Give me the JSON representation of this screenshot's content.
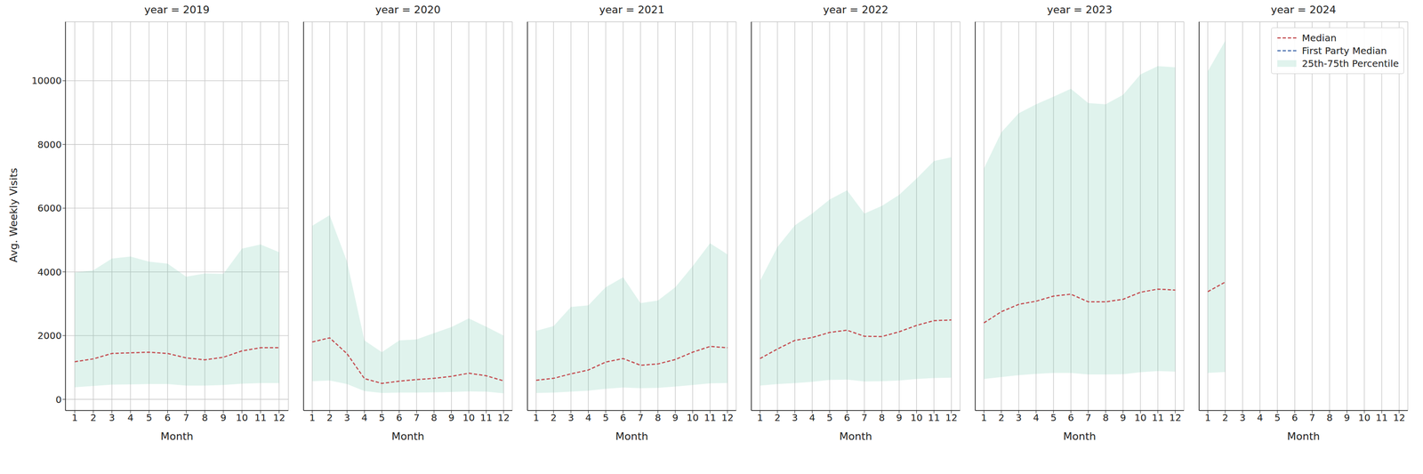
{
  "chart_data": [
    {
      "type": "line",
      "title": "year = 2019",
      "x_label": "Month",
      "y_label": "Avg. Weekly Visits",
      "x": [
        1,
        2,
        3,
        4,
        5,
        6,
        7,
        8,
        9,
        10,
        11,
        12
      ],
      "xlim": [
        0.5,
        12.5
      ],
      "xticks": [
        1,
        2,
        3,
        4,
        5,
        6,
        7,
        8,
        9,
        10,
        11,
        12
      ],
      "ylim": [
        -350,
        11850
      ],
      "yticks": [
        0,
        2000,
        4000,
        6000,
        8000,
        10000
      ],
      "grid": true,
      "series": [
        {
          "name": "Median",
          "color": "#c44e52",
          "line_style": "dashed",
          "values": [
            1180,
            1270,
            1440,
            1460,
            1480,
            1440,
            1300,
            1240,
            1320,
            1520,
            1620,
            1620
          ]
        },
        {
          "name": "First Party Median",
          "color": "#4c72b0",
          "line_style": "dashed",
          "values": [
            null,
            null,
            null,
            null,
            null,
            null,
            null,
            null,
            null,
            null,
            null,
            null
          ]
        },
        {
          "name": "25th-75th Percentile",
          "type": "band",
          "color": "#66c2a5",
          "low": [
            380,
            420,
            460,
            470,
            480,
            480,
            430,
            430,
            450,
            490,
            510,
            510
          ],
          "high": [
            3980,
            4050,
            4420,
            4480,
            4320,
            4260,
            3850,
            3950,
            3940,
            4730,
            4860,
            4620
          ]
        }
      ]
    },
    {
      "type": "line",
      "title": "year = 2020",
      "x_label": "Month",
      "x": [
        1,
        2,
        3,
        4,
        5,
        6,
        7,
        8,
        9,
        10,
        11,
        12
      ],
      "xlim": [
        0.5,
        12.5
      ],
      "xticks": [
        1,
        2,
        3,
        4,
        5,
        6,
        7,
        8,
        9,
        10,
        11,
        12
      ],
      "ylim": [
        -350,
        11850
      ],
      "yticks": [
        0,
        2000,
        4000,
        6000,
        8000,
        10000
      ],
      "grid": true,
      "tick_labels": "x",
      "series": [
        {
          "name": "Median",
          "color": "#c44e52",
          "line_style": "dashed",
          "values": [
            1800,
            1930,
            1430,
            650,
            500,
            570,
            620,
            660,
            720,
            820,
            740,
            580
          ]
        },
        {
          "name": "First Party Median",
          "color": "#4c72b0",
          "line_style": "dashed",
          "values": [
            null,
            null,
            null,
            null,
            null,
            null,
            null,
            null,
            null,
            null,
            null,
            null
          ]
        },
        {
          "name": "25th-75th Percentile",
          "type": "band",
          "color": "#66c2a5",
          "low": [
            570,
            590,
            480,
            260,
            200,
            210,
            210,
            220,
            230,
            250,
            240,
            190
          ],
          "high": [
            5450,
            5780,
            4320,
            1850,
            1480,
            1850,
            1880,
            2080,
            2270,
            2540,
            2280,
            2000
          ]
        }
      ]
    },
    {
      "type": "line",
      "title": "year = 2021",
      "x_label": "Month",
      "x": [
        1,
        2,
        3,
        4,
        5,
        6,
        7,
        8,
        9,
        10,
        11,
        12
      ],
      "xlim": [
        0.5,
        12.5
      ],
      "xticks": [
        1,
        2,
        3,
        4,
        5,
        6,
        7,
        8,
        9,
        10,
        11,
        12
      ],
      "ylim": [
        -350,
        11850
      ],
      "yticks": [
        0,
        2000,
        4000,
        6000,
        8000,
        10000
      ],
      "grid": true,
      "tick_labels": "x",
      "series": [
        {
          "name": "Median",
          "color": "#c44e52",
          "line_style": "dashed",
          "values": [
            600,
            660,
            800,
            920,
            1170,
            1280,
            1070,
            1110,
            1250,
            1480,
            1660,
            1620
          ]
        },
        {
          "name": "First Party Median",
          "color": "#4c72b0",
          "line_style": "dashed",
          "values": [
            null,
            null,
            null,
            null,
            null,
            null,
            null,
            null,
            null,
            null,
            null,
            null
          ]
        },
        {
          "name": "25th-75th Percentile",
          "type": "band",
          "color": "#66c2a5",
          "low": [
            200,
            210,
            240,
            270,
            330,
            370,
            350,
            360,
            400,
            450,
            500,
            510
          ],
          "high": [
            2150,
            2300,
            2900,
            2950,
            3520,
            3830,
            3020,
            3100,
            3520,
            4180,
            4900,
            4550
          ]
        }
      ]
    },
    {
      "type": "line",
      "title": "year = 2022",
      "x_label": "Month",
      "x": [
        1,
        2,
        3,
        4,
        5,
        6,
        7,
        8,
        9,
        10,
        11,
        12
      ],
      "xlim": [
        0.5,
        12.5
      ],
      "xticks": [
        1,
        2,
        3,
        4,
        5,
        6,
        7,
        8,
        9,
        10,
        11,
        12
      ],
      "ylim": [
        -350,
        11850
      ],
      "yticks": [
        0,
        2000,
        4000,
        6000,
        8000,
        10000
      ],
      "grid": true,
      "tick_labels": "x",
      "series": [
        {
          "name": "Median",
          "color": "#c44e52",
          "line_style": "dashed",
          "values": [
            1280,
            1580,
            1850,
            1940,
            2100,
            2170,
            1980,
            1970,
            2120,
            2320,
            2470,
            2490
          ]
        },
        {
          "name": "First Party Median",
          "color": "#4c72b0",
          "line_style": "dashed",
          "values": [
            null,
            null,
            null,
            null,
            null,
            null,
            null,
            null,
            null,
            null,
            null,
            null
          ]
        },
        {
          "name": "25th-75th Percentile",
          "type": "band",
          "color": "#66c2a5",
          "low": [
            430,
            480,
            510,
            550,
            610,
            620,
            560,
            570,
            590,
            640,
            670,
            680
          ],
          "high": [
            3720,
            4780,
            5460,
            5830,
            6270,
            6560,
            5830,
            6070,
            6420,
            6930,
            7480,
            7600
          ]
        }
      ]
    },
    {
      "type": "line",
      "title": "year = 2023",
      "x_label": "Month",
      "x": [
        1,
        2,
        3,
        4,
        5,
        6,
        7,
        8,
        9,
        10,
        11,
        12
      ],
      "xlim": [
        0.5,
        12.5
      ],
      "xticks": [
        1,
        2,
        3,
        4,
        5,
        6,
        7,
        8,
        9,
        10,
        11,
        12
      ],
      "ylim": [
        -350,
        11850
      ],
      "yticks": [
        0,
        2000,
        4000,
        6000,
        8000,
        10000
      ],
      "grid": true,
      "tick_labels": "x",
      "series": [
        {
          "name": "Median",
          "color": "#c44e52",
          "line_style": "dashed",
          "values": [
            2400,
            2750,
            2980,
            3080,
            3240,
            3300,
            3060,
            3060,
            3140,
            3360,
            3460,
            3430
          ]
        },
        {
          "name": "First Party Median",
          "color": "#4c72b0",
          "line_style": "dashed",
          "values": [
            null,
            null,
            null,
            null,
            null,
            null,
            null,
            null,
            null,
            null,
            null,
            null
          ]
        },
        {
          "name": "25th-75th Percentile",
          "type": "band",
          "color": "#66c2a5",
          "low": [
            640,
            700,
            760,
            800,
            830,
            830,
            780,
            780,
            790,
            850,
            890,
            870
          ],
          "high": [
            7250,
            8380,
            8980,
            9260,
            9500,
            9750,
            9300,
            9260,
            9560,
            10200,
            10460,
            10420
          ]
        }
      ]
    },
    {
      "type": "line",
      "title": "year = 2024",
      "x_label": "Month",
      "x": [
        1,
        2,
        3,
        4,
        5,
        6,
        7,
        8,
        9,
        10,
        11,
        12
      ],
      "xlim": [
        0.5,
        12.5
      ],
      "xticks": [
        1,
        2,
        3,
        4,
        5,
        6,
        7,
        8,
        9,
        10,
        11,
        12
      ],
      "ylim": [
        -350,
        11850
      ],
      "yticks": [
        0,
        2000,
        4000,
        6000,
        8000,
        10000
      ],
      "grid": true,
      "tick_labels": "x",
      "legend": "upper right",
      "series": [
        {
          "name": "Median",
          "color": "#c44e52",
          "line_style": "dashed",
          "values": [
            3380,
            3680,
            null,
            null,
            null,
            null,
            null,
            null,
            null,
            null,
            null,
            null
          ]
        },
        {
          "name": "First Party Median",
          "color": "#4c72b0",
          "line_style": "dashed",
          "values": [
            null,
            null,
            null,
            null,
            null,
            null,
            null,
            null,
            null,
            null,
            null,
            null
          ]
        },
        {
          "name": "25th-75th Percentile",
          "type": "band",
          "color": "#66c2a5",
          "low": [
            830,
            860,
            null,
            null,
            null,
            null,
            null,
            null,
            null,
            null,
            null,
            null
          ],
          "high": [
            10300,
            11250,
            null,
            null,
            null,
            null,
            null,
            null,
            null,
            null,
            null,
            null
          ]
        }
      ]
    }
  ]
}
